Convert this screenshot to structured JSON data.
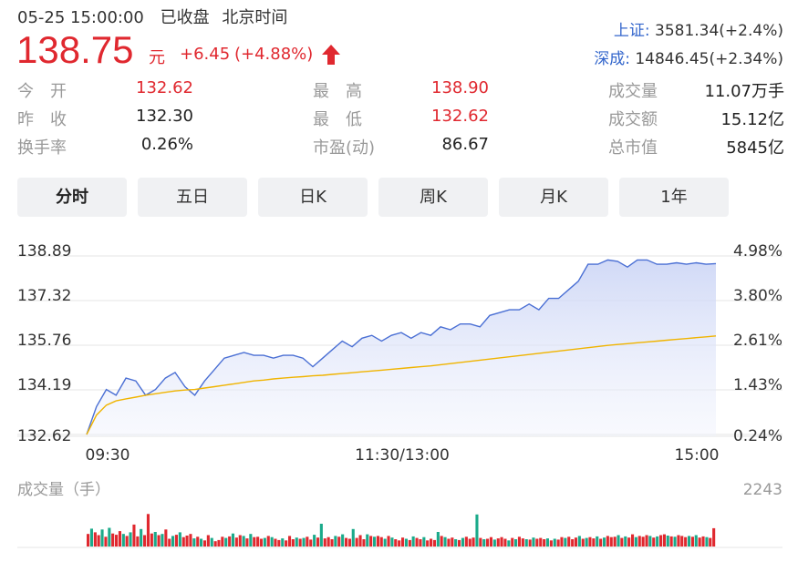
{
  "header": {
    "datetime": "05-25 15:00:00",
    "status": "已收盘",
    "timezone": "北京时间",
    "price": "138.75",
    "currency": "元",
    "change": "+6.45",
    "change_pct": "(+4.88%)",
    "arrow_icon": "up-arrow-icon"
  },
  "indices": [
    {
      "name": "上证:",
      "value": "3581.34(+2.4%)"
    },
    {
      "name": "深成:",
      "value": "14846.45(+2.34%)"
    }
  ],
  "stats": [
    {
      "label": "今　开",
      "value": "132.62",
      "color": "#e0282f"
    },
    {
      "label": "最　高",
      "value": "138.90",
      "color": "#e0282f"
    },
    {
      "label": "成交量",
      "value": "11.07万手",
      "color": "#222222"
    },
    {
      "label": "昨　收",
      "value": "132.30",
      "color": "#222222"
    },
    {
      "label": "最　低",
      "value": "132.62",
      "color": "#e0282f"
    },
    {
      "label": "成交额",
      "value": "15.12亿",
      "color": "#222222"
    },
    {
      "label": "换手率",
      "value": "0.26%",
      "color": "#222222"
    },
    {
      "label": "市盈(动)",
      "value": "86.67",
      "color": "#222222"
    },
    {
      "label": "总市值",
      "value": "5845亿",
      "color": "#222222"
    }
  ],
  "tabs": [
    {
      "label": "分时",
      "active": true
    },
    {
      "label": "五日",
      "active": false
    },
    {
      "label": "日K",
      "active": false
    },
    {
      "label": "周K",
      "active": false
    },
    {
      "label": "月K",
      "active": false
    },
    {
      "label": "1年",
      "active": false
    }
  ],
  "chart_data": {
    "type": "line",
    "y_left_ticks": [
      "138.89",
      "137.32",
      "135.76",
      "134.19",
      "132.62"
    ],
    "y_right_ticks": [
      "4.98%",
      "3.80%",
      "2.61%",
      "1.43%",
      "0.24%"
    ],
    "x_ticks": [
      "09:30",
      "11:30/13:00",
      "15:00"
    ],
    "ylim": [
      132.62,
      138.89
    ],
    "series": [
      {
        "color": "#4a6fd4",
        "values": [
          132.62,
          133.6,
          134.2,
          134.0,
          134.6,
          134.5,
          134.0,
          134.2,
          134.6,
          134.8,
          134.3,
          134.0,
          134.5,
          134.9,
          135.3,
          135.4,
          135.5,
          135.4,
          135.4,
          135.3,
          135.4,
          135.4,
          135.3,
          135.0,
          135.3,
          135.6,
          135.9,
          135.7,
          136.0,
          136.1,
          135.9,
          136.1,
          136.2,
          136.0,
          136.2,
          136.1,
          136.4,
          136.3,
          136.5,
          136.5,
          136.4,
          136.8,
          136.9,
          137.0,
          137.0,
          137.2,
          137.0,
          137.4,
          137.4,
          137.7,
          138.0,
          138.6,
          138.6,
          138.75,
          138.7,
          138.5,
          138.75,
          138.75,
          138.6,
          138.6,
          138.65,
          138.6,
          138.65,
          138.6,
          138.62
        ]
      },
      {
        "color": "#f0b400",
        "values": [
          132.62,
          133.3,
          133.65,
          133.8,
          133.87,
          133.93,
          134.0,
          134.05,
          134.1,
          134.15,
          134.18,
          134.2,
          134.25,
          134.3,
          134.35,
          134.4,
          134.45,
          134.5,
          134.53,
          134.57,
          134.6,
          134.63,
          134.65,
          134.68,
          134.7,
          134.73,
          134.76,
          134.79,
          134.82,
          134.85,
          134.88,
          134.91,
          134.94,
          134.97,
          135.0,
          135.03,
          135.07,
          135.11,
          135.15,
          135.19,
          135.23,
          135.27,
          135.31,
          135.35,
          135.39,
          135.43,
          135.47,
          135.51,
          135.55,
          135.59,
          135.63,
          135.67,
          135.71,
          135.75,
          135.78,
          135.81,
          135.84,
          135.87,
          135.9,
          135.93,
          135.96,
          135.99,
          136.02,
          136.05,
          136.08
        ]
      }
    ]
  },
  "volume": {
    "label": "成交量（手）",
    "max_label": "2243",
    "max": 2243,
    "bars": [
      620,
      880,
      700,
      560,
      840,
      480,
      920,
      640,
      580,
      760,
      620,
      520,
      700,
      1080,
      500,
      860,
      560,
      1600,
      640,
      720,
      560,
      620,
      840,
      380,
      520,
      580,
      700,
      460,
      540,
      620,
      400,
      480,
      380,
      300,
      560,
      420,
      260,
      320,
      480,
      420,
      500,
      640,
      440,
      560,
      520,
      400,
      620,
      460,
      480,
      380,
      420,
      520,
      460,
      380,
      320,
      400,
      300,
      520,
      360,
      440,
      380,
      420,
      480,
      340,
      580,
      440,
      1120,
      400,
      460,
      360,
      520,
      480,
      600,
      420,
      380,
      860,
      420,
      560,
      360,
      600,
      520,
      480,
      520,
      460,
      380,
      520,
      440,
      360,
      300,
      440,
      380,
      320,
      500,
      420,
      360,
      460,
      300,
      380,
      320,
      720,
      520,
      460,
      380,
      440,
      360,
      320,
      420,
      480,
      380,
      440,
      1580,
      420,
      360,
      380,
      460,
      340,
      400,
      460,
      380,
      300,
      420,
      360,
      480,
      400,
      360,
      340,
      440,
      380,
      420,
      360,
      400,
      300,
      380,
      340,
      460,
      420,
      480,
      360,
      440,
      520,
      380,
      420,
      460,
      400,
      500,
      380,
      440,
      520,
      460,
      480,
      560,
      420,
      500,
      440,
      600,
      460,
      520,
      480,
      560,
      520,
      440,
      500,
      560,
      600,
      540,
      500,
      480,
      560,
      520,
      460,
      520,
      480,
      560,
      440,
      500,
      460,
      420,
      900
    ],
    "colors_pattern": "rgrrgrgrrrgrgrrgrrrg"
  }
}
